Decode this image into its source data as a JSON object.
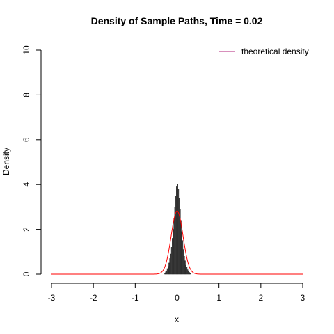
{
  "chart_data": {
    "type": "bar",
    "title": "Density of Sample Paths, Time = 0.02",
    "xlabel": "x",
    "ylabel": "Density",
    "xlim": [
      -3,
      3
    ],
    "ylim": [
      0,
      10
    ],
    "x_ticks": [
      "-3",
      "-2",
      "-1",
      "0",
      "1",
      "2",
      "3"
    ],
    "y_ticks": [
      "0",
      "2",
      "4",
      "6",
      "8",
      "10"
    ],
    "grid": false,
    "histogram": {
      "bin_width": 0.02,
      "bins": [
        {
          "x0": -0.3,
          "density": 0.05
        },
        {
          "x0": -0.28,
          "density": 0.1
        },
        {
          "x0": -0.26,
          "density": 0.15
        },
        {
          "x0": -0.24,
          "density": 0.25
        },
        {
          "x0": -0.22,
          "density": 0.35
        },
        {
          "x0": -0.2,
          "density": 0.5
        },
        {
          "x0": -0.18,
          "density": 0.7
        },
        {
          "x0": -0.16,
          "density": 0.9
        },
        {
          "x0": -0.14,
          "density": 1.2
        },
        {
          "x0": -0.12,
          "density": 1.6
        },
        {
          "x0": -0.1,
          "density": 2.0
        },
        {
          "x0": -0.08,
          "density": 2.5
        },
        {
          "x0": -0.06,
          "density": 3.0
        },
        {
          "x0": -0.04,
          "density": 3.5
        },
        {
          "x0": -0.02,
          "density": 3.9
        },
        {
          "x0": 0.0,
          "density": 4.0
        },
        {
          "x0": 0.02,
          "density": 3.8
        },
        {
          "x0": 0.04,
          "density": 3.4
        },
        {
          "x0": 0.06,
          "density": 2.9
        },
        {
          "x0": 0.08,
          "density": 2.4
        },
        {
          "x0": 0.1,
          "density": 1.9
        },
        {
          "x0": 0.12,
          "density": 1.5
        },
        {
          "x0": 0.14,
          "density": 1.1
        },
        {
          "x0": 0.16,
          "density": 0.8
        },
        {
          "x0": 0.18,
          "density": 0.6
        },
        {
          "x0": 0.2,
          "density": 0.4
        },
        {
          "x0": 0.22,
          "density": 0.3
        },
        {
          "x0": 0.24,
          "density": 0.2
        },
        {
          "x0": 0.26,
          "density": 0.12
        },
        {
          "x0": 0.28,
          "density": 0.08
        },
        {
          "x0": 0.3,
          "density": 0.05
        }
      ],
      "color": "#444444"
    },
    "series": [
      {
        "name": "theoretical density",
        "type": "line",
        "color": "#ff0000",
        "distribution": "normal",
        "mean": 0,
        "sd": 0.1414,
        "x_range": [
          -3,
          3
        ]
      }
    ],
    "legend": {
      "entries": [
        "theoretical density"
      ],
      "placement": "top-right"
    }
  }
}
